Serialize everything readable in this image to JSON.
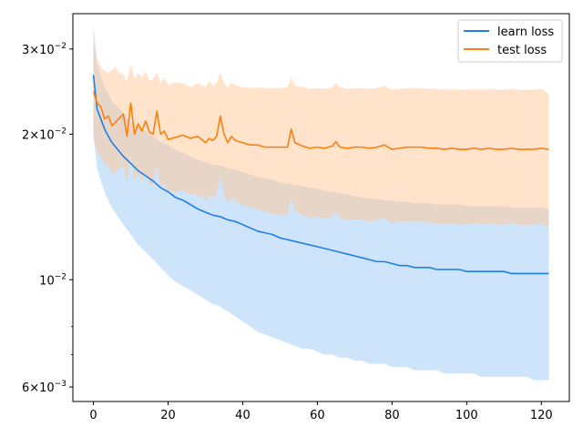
{
  "chart_data": {
    "type": "line",
    "title": "",
    "xlabel": "",
    "ylabel": "",
    "yscale": "log",
    "xlim": [
      -5.5,
      127.5
    ],
    "ylim": [
      0.0056,
      0.0355
    ],
    "grid": false,
    "legend_position": "top-right",
    "x_ticks": [
      0,
      20,
      40,
      60,
      80,
      100,
      120
    ],
    "x_tick_labels": [
      "0",
      "20",
      "40",
      "60",
      "80",
      "100",
      "120"
    ],
    "y_major_ticks": [
      {
        "value": 0.03,
        "mantissa": "3",
        "exp": "−2"
      },
      {
        "value": 0.02,
        "mantissa": "2",
        "exp": "−2"
      },
      {
        "value": 0.01,
        "mantissa": "",
        "exp": "−2"
      },
      {
        "value": 0.006,
        "mantissa": "6",
        "exp": "−3"
      }
    ],
    "y_minor_ticks": [
      0.008,
      0.007
    ],
    "series": [
      {
        "name": "learn loss",
        "color": "#1f7fe8",
        "band_color": "#9ec9f7",
        "x": [
          0,
          1,
          2,
          3,
          4,
          5,
          6,
          8,
          10,
          12,
          14,
          16,
          18,
          20,
          22,
          24,
          26,
          28,
          30,
          32,
          34,
          36,
          38,
          40,
          42,
          44,
          46,
          48,
          50,
          52,
          54,
          56,
          58,
          60,
          62,
          64,
          66,
          68,
          70,
          72,
          74,
          76,
          78,
          80,
          82,
          84,
          86,
          88,
          90,
          92,
          94,
          96,
          98,
          100,
          102,
          104,
          106,
          108,
          110,
          112,
          114,
          116,
          118,
          120,
          122
        ],
        "mean": [
          0.0265,
          0.0225,
          0.0215,
          0.0205,
          0.0198,
          0.0192,
          0.0188,
          0.018,
          0.0174,
          0.0168,
          0.0164,
          0.016,
          0.0155,
          0.0152,
          0.0148,
          0.0146,
          0.0143,
          0.014,
          0.0138,
          0.0136,
          0.0135,
          0.0133,
          0.0132,
          0.013,
          0.0128,
          0.0126,
          0.0125,
          0.0124,
          0.0122,
          0.0121,
          0.012,
          0.0119,
          0.0118,
          0.0117,
          0.0116,
          0.0115,
          0.0114,
          0.0113,
          0.0112,
          0.0111,
          0.011,
          0.0109,
          0.0109,
          0.0108,
          0.0107,
          0.0107,
          0.0106,
          0.0106,
          0.0106,
          0.0105,
          0.0105,
          0.0105,
          0.0105,
          0.0104,
          0.0104,
          0.0104,
          0.0104,
          0.0104,
          0.0104,
          0.0103,
          0.0103,
          0.0103,
          0.0103,
          0.0103,
          0.0103
        ],
        "upper": [
          0.0335,
          0.028,
          0.0265,
          0.025,
          0.0242,
          0.0234,
          0.023,
          0.0221,
          0.0213,
          0.0207,
          0.0203,
          0.0198,
          0.0193,
          0.019,
          0.0186,
          0.0183,
          0.018,
          0.0177,
          0.0175,
          0.0173,
          0.0172,
          0.017,
          0.0169,
          0.0167,
          0.0165,
          0.0163,
          0.0162,
          0.0161,
          0.0159,
          0.0158,
          0.0157,
          0.0156,
          0.0155,
          0.0154,
          0.0153,
          0.0152,
          0.0151,
          0.015,
          0.0149,
          0.0148,
          0.0147,
          0.0147,
          0.0146,
          0.0146,
          0.0145,
          0.0145,
          0.0144,
          0.0144,
          0.0144,
          0.0143,
          0.0143,
          0.0143,
          0.0143,
          0.0142,
          0.0142,
          0.0142,
          0.0142,
          0.0142,
          0.0142,
          0.0141,
          0.0141,
          0.0141,
          0.0141,
          0.0141,
          0.014
        ],
        "lower": [
          0.02,
          0.017,
          0.016,
          0.0152,
          0.0146,
          0.0141,
          0.0137,
          0.013,
          0.0124,
          0.0118,
          0.0114,
          0.011,
          0.0106,
          0.0102,
          0.0099,
          0.0097,
          0.0095,
          0.0093,
          0.0091,
          0.0089,
          0.0088,
          0.0086,
          0.0084,
          0.0082,
          0.008,
          0.0078,
          0.0077,
          0.0076,
          0.0075,
          0.0074,
          0.0073,
          0.0072,
          0.0072,
          0.0071,
          0.007,
          0.007,
          0.0069,
          0.0069,
          0.0068,
          0.0068,
          0.0067,
          0.0067,
          0.0067,
          0.0066,
          0.0066,
          0.0066,
          0.0065,
          0.0065,
          0.0065,
          0.0065,
          0.0064,
          0.0064,
          0.0064,
          0.0064,
          0.0064,
          0.0063,
          0.0063,
          0.0063,
          0.0063,
          0.0063,
          0.0063,
          0.0063,
          0.0062,
          0.0062,
          0.0062
        ]
      },
      {
        "name": "test loss",
        "color": "#ff7f0e",
        "band_color": "#ffc896",
        "x": [
          0,
          1,
          2,
          3,
          4,
          5,
          6,
          7,
          8,
          9,
          10,
          11,
          12,
          13,
          14,
          15,
          16,
          17,
          18,
          19,
          20,
          22,
          24,
          26,
          28,
          30,
          31,
          32,
          33,
          34,
          35,
          36,
          37,
          38,
          40,
          42,
          44,
          46,
          48,
          50,
          52,
          53,
          54,
          56,
          58,
          60,
          62,
          64,
          65,
          66,
          68,
          70,
          72,
          74,
          76,
          78,
          80,
          82,
          84,
          86,
          88,
          90,
          92,
          94,
          96,
          98,
          100,
          102,
          104,
          106,
          108,
          110,
          112,
          114,
          116,
          118,
          120,
          122
        ],
        "mean": [
          0.0245,
          0.0232,
          0.0228,
          0.0215,
          0.0218,
          0.0208,
          0.0212,
          0.0216,
          0.022,
          0.0198,
          0.0232,
          0.02,
          0.021,
          0.0203,
          0.0213,
          0.0202,
          0.02,
          0.0223,
          0.02,
          0.0203,
          0.0195,
          0.0197,
          0.0199,
          0.0196,
          0.0198,
          0.0192,
          0.0196,
          0.0194,
          0.0198,
          0.0218,
          0.02,
          0.0192,
          0.0198,
          0.0194,
          0.0192,
          0.019,
          0.019,
          0.0188,
          0.0188,
          0.0188,
          0.0188,
          0.0205,
          0.0192,
          0.0189,
          0.0187,
          0.0188,
          0.0187,
          0.0189,
          0.0193,
          0.0188,
          0.0187,
          0.0188,
          0.0188,
          0.0187,
          0.0188,
          0.019,
          0.0186,
          0.0187,
          0.0188,
          0.0188,
          0.0188,
          0.0187,
          0.0187,
          0.0186,
          0.0187,
          0.0186,
          0.0186,
          0.0187,
          0.0186,
          0.0187,
          0.0186,
          0.0186,
          0.0187,
          0.0186,
          0.0186,
          0.0186,
          0.0187,
          0.0186
        ],
        "upper": [
          0.031,
          0.0285,
          0.0275,
          0.027,
          0.0268,
          0.0272,
          0.0275,
          0.0268,
          0.0266,
          0.0256,
          0.028,
          0.026,
          0.0268,
          0.0262,
          0.027,
          0.0258,
          0.026,
          0.0268,
          0.0255,
          0.0262,
          0.0252,
          0.0256,
          0.0255,
          0.025,
          0.0255,
          0.025,
          0.0258,
          0.0252,
          0.0255,
          0.0268,
          0.0255,
          0.025,
          0.0256,
          0.0252,
          0.025,
          0.0249,
          0.025,
          0.0249,
          0.0249,
          0.0249,
          0.025,
          0.0262,
          0.0252,
          0.025,
          0.0248,
          0.0249,
          0.0248,
          0.025,
          0.0255,
          0.025,
          0.0248,
          0.0249,
          0.0249,
          0.0248,
          0.0249,
          0.0252,
          0.0247,
          0.0248,
          0.0249,
          0.0249,
          0.0249,
          0.0248,
          0.0248,
          0.0247,
          0.0248,
          0.0247,
          0.0247,
          0.0248,
          0.0247,
          0.0248,
          0.0247,
          0.0247,
          0.0248,
          0.0247,
          0.0247,
          0.0247,
          0.0248,
          0.0242
        ],
        "lower": [
          0.0195,
          0.0185,
          0.018,
          0.0172,
          0.0172,
          0.0165,
          0.0167,
          0.017,
          0.0172,
          0.0158,
          0.018,
          0.016,
          0.0166,
          0.016,
          0.0166,
          0.0158,
          0.0157,
          0.0172,
          0.0155,
          0.0158,
          0.0152,
          0.0152,
          0.0153,
          0.015,
          0.015,
          0.0146,
          0.015,
          0.0147,
          0.015,
          0.0165,
          0.015,
          0.0144,
          0.0148,
          0.0145,
          0.0143,
          0.0141,
          0.014,
          0.0138,
          0.0137,
          0.0136,
          0.0136,
          0.0148,
          0.0139,
          0.0136,
          0.0134,
          0.0135,
          0.0134,
          0.0135,
          0.0138,
          0.0134,
          0.0133,
          0.0133,
          0.0133,
          0.0132,
          0.0133,
          0.0134,
          0.0131,
          0.0132,
          0.0132,
          0.0132,
          0.0132,
          0.0131,
          0.0131,
          0.013,
          0.0131,
          0.013,
          0.013,
          0.0131,
          0.013,
          0.0131,
          0.013,
          0.013,
          0.0131,
          0.013,
          0.013,
          0.013,
          0.0131,
          0.0128
        ]
      }
    ]
  }
}
